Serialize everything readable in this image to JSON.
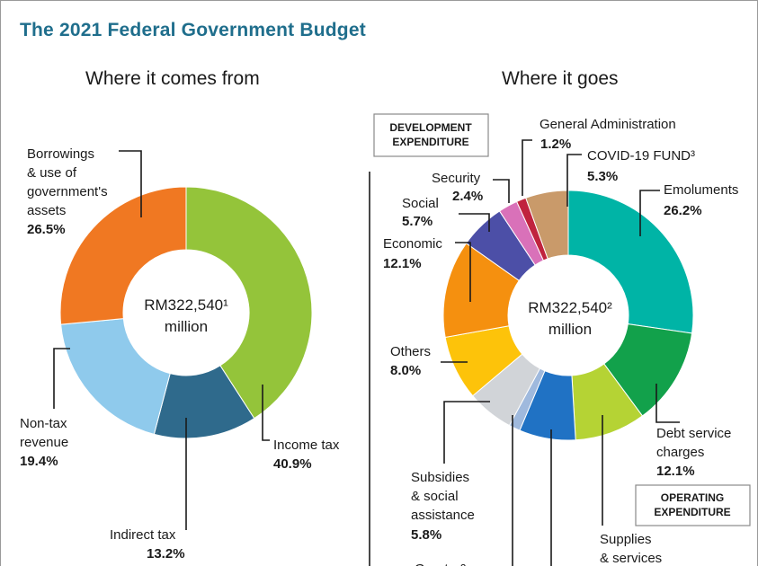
{
  "title": "The 2021 Federal Government Budget",
  "chart_data": [
    {
      "type": "pie",
      "subtitle": "Where it comes from",
      "center_label": [
        "RM322,540¹",
        "million"
      ],
      "slices": [
        {
          "label": [
            "Income tax"
          ],
          "value": 40.9,
          "pct": "40.9%",
          "color": "#94c43a"
        },
        {
          "label": [
            "Indirect tax"
          ],
          "value": 13.2,
          "pct": "13.2%",
          "color": "#2f6a8c"
        },
        {
          "label": [
            "Non-tax",
            "revenue"
          ],
          "value": 19.4,
          "pct": "19.4%",
          "color": "#8fcaec"
        },
        {
          "label": [
            "Borrowings",
            "& use of",
            "government's",
            "assets"
          ],
          "value": 26.5,
          "pct": "26.5%",
          "color": "#f07822"
        }
      ]
    },
    {
      "type": "pie",
      "subtitle": "Where it goes",
      "center_label": [
        "RM322,540²",
        "million"
      ],
      "slices": [
        {
          "label": [
            "Emoluments"
          ],
          "value": 26.2,
          "pct": "26.2%",
          "color": "#00b4a6"
        },
        {
          "label": [
            "Debt service",
            "charges"
          ],
          "value": 12.1,
          "pct": "12.1%",
          "color": "#12a14b"
        },
        {
          "label": [
            "Supplies",
            "& services"
          ],
          "value": 8.8,
          "pct": "",
          "color": "#b5d334"
        },
        {
          "label": [
            ""
          ],
          "value": 7.0,
          "pct": "",
          "color": "#2072c4"
        },
        {
          "label": [
            ""
          ],
          "value": 1.4,
          "pct": "",
          "color": "#9fb9dd"
        },
        {
          "label": [
            "Subsidies",
            "& social",
            "assistance"
          ],
          "value": 5.8,
          "pct": "5.8%",
          "color": "#d1d4d8"
        },
        {
          "label": [
            "Others"
          ],
          "value": 8.0,
          "pct": "8.0%",
          "color": "#fdc30a"
        },
        {
          "label": [
            "Economic"
          ],
          "value": 12.1,
          "pct": "12.1%",
          "color": "#f5900f"
        },
        {
          "label": [
            "Social"
          ],
          "value": 5.7,
          "pct": "5.7%",
          "color": "#4c4fa7"
        },
        {
          "label": [
            "Security"
          ],
          "value": 2.4,
          "pct": "2.4%",
          "color": "#d971b9"
        },
        {
          "label": [
            "General Administration"
          ],
          "value": 1.2,
          "pct": "1.2%",
          "color": "#c0233e"
        },
        {
          "label": [
            "COVID-19 FUND³"
          ],
          "value": 5.3,
          "pct": "5.3%",
          "color": "#c99a6a"
        }
      ],
      "boxes": [
        [
          "DEVELOPMENT",
          "EXPENDITURE"
        ],
        [
          "OPERATING",
          "EXPENDITURE"
        ]
      ],
      "partial_label": "Grants &"
    }
  ]
}
